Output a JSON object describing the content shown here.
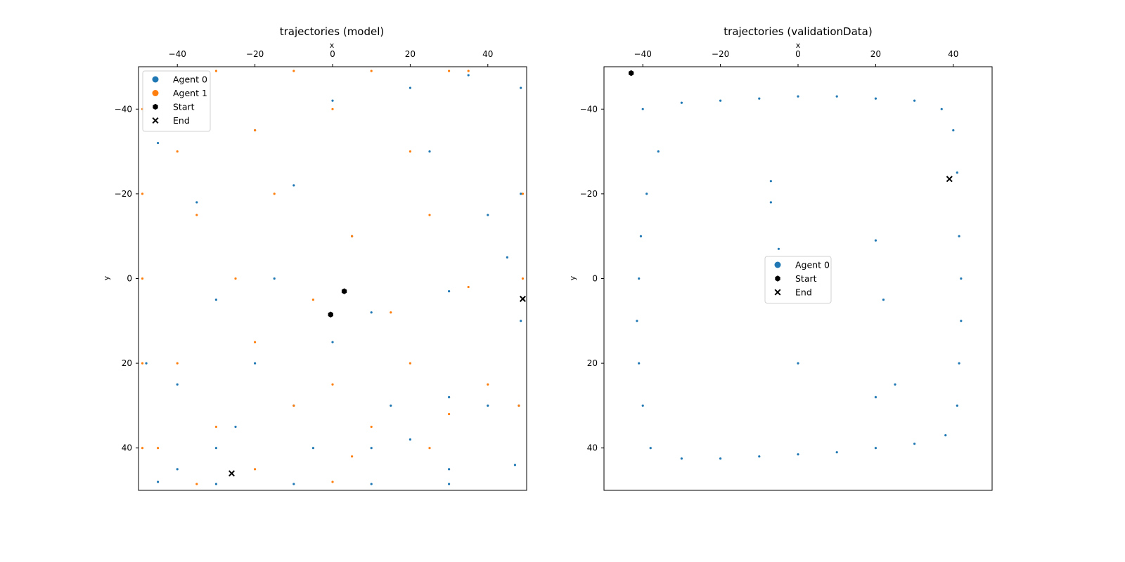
{
  "chart_data": [
    {
      "type": "scatter",
      "title": "trajectories (model)",
      "xlabel": "x",
      "ylabel": "y",
      "xlim": [
        -50,
        50
      ],
      "ylim": [
        50,
        -50
      ],
      "y_inverted": true,
      "x_axis_position": "top",
      "xticks": [
        -40,
        -20,
        0,
        20,
        40
      ],
      "yticks": [
        -40,
        -20,
        0,
        20,
        40
      ],
      "grid": false,
      "legend": {
        "placement": "top-left",
        "entries": [
          {
            "label": "Agent 0",
            "marker": "circle",
            "color": "#1f77b4"
          },
          {
            "label": "Agent 1",
            "marker": "circle",
            "color": "#ff7f0e"
          },
          {
            "label": "Start",
            "marker": "hexagon",
            "color": "#000000"
          },
          {
            "label": "End",
            "marker": "x",
            "color": "#000000"
          }
        ]
      },
      "series": [
        {
          "name": "Agent 0",
          "color": "#1f77b4",
          "x": [
            48.5,
            48.5,
            48.5,
            48.0,
            47.0,
            30.0,
            10.0,
            -10.0,
            -30.0,
            -45.0,
            -48.0,
            -45.0,
            -20.0,
            0.0,
            20.0,
            35.0,
            -35.0,
            -10.0,
            5.0,
            25.0,
            40.0,
            -30.0,
            -15.0,
            10.0,
            30.0,
            45.0,
            -40.0,
            -20.0,
            0.0,
            15.0,
            30.0,
            -25.0,
            -5.0,
            20.0,
            40.0,
            -40.0,
            -30.0,
            -10.0,
            10.0,
            30.0
          ],
          "y": [
            -45.0,
            -20.0,
            10.0,
            30.0,
            44.0,
            48.5,
            48.5,
            48.5,
            48.5,
            48.0,
            20.0,
            -32.0,
            -35.0,
            -42.0,
            -45.0,
            -48.0,
            -18.0,
            -22.0,
            -10.0,
            -30.0,
            -15.0,
            5.0,
            0.0,
            8.0,
            3.0,
            -5.0,
            25.0,
            20.0,
            15.0,
            30.0,
            28.0,
            35.0,
            40.0,
            38.0,
            30.0,
            45.0,
            40.0,
            30.0,
            40.0,
            45.0
          ]
        },
        {
          "name": "Agent 1",
          "color": "#ff7f0e",
          "x": [
            -49.0,
            -49.0,
            -49.0,
            -49.0,
            -49.0,
            -30.0,
            -10.0,
            10.0,
            30.0,
            35.0,
            49.0,
            49.0,
            48.0,
            -40.0,
            -20.0,
            0.0,
            20.0,
            -35.0,
            -15.0,
            5.0,
            25.0,
            -25.0,
            -5.0,
            15.0,
            35.0,
            -40.0,
            -20.0,
            0.0,
            20.0,
            40.0,
            -30.0,
            -10.0,
            10.0,
            30.0,
            -45.0,
            -20.0,
            5.0,
            25.0,
            -35.0,
            0.0
          ],
          "y": [
            -40.0,
            -20.0,
            0.0,
            20.0,
            40.0,
            -49.0,
            -49.0,
            -49.0,
            -49.0,
            -49.0,
            -20.0,
            0.0,
            30.0,
            -30.0,
            -35.0,
            -40.0,
            -30.0,
            -15.0,
            -20.0,
            -10.0,
            -15.0,
            0.0,
            5.0,
            8.0,
            2.0,
            20.0,
            15.0,
            25.0,
            20.0,
            25.0,
            35.0,
            30.0,
            35.0,
            32.0,
            40.0,
            45.0,
            42.0,
            40.0,
            48.5,
            48.0
          ]
        }
      ],
      "markers": {
        "start": [
          {
            "x": 3.0,
            "y": 3.0
          },
          {
            "x": -0.5,
            "y": 8.5
          }
        ],
        "end": [
          {
            "x": 49.0,
            "y": 4.8
          },
          {
            "x": -26.0,
            "y": 46.0
          }
        ]
      }
    },
    {
      "type": "scatter",
      "title": "trajectories (validationData)",
      "xlabel": "x",
      "ylabel": "y",
      "xlim": [
        -50,
        50
      ],
      "ylim": [
        50,
        -50
      ],
      "y_inverted": true,
      "x_axis_position": "top",
      "xticks": [
        -40,
        -20,
        0,
        20,
        40
      ],
      "yticks": [
        -40,
        -20,
        0,
        20,
        40
      ],
      "grid": false,
      "legend": {
        "placement": "center",
        "entries": [
          {
            "label": "Agent 0",
            "marker": "circle",
            "color": "#1f77b4"
          },
          {
            "label": "Start",
            "marker": "hexagon",
            "color": "#000000"
          },
          {
            "label": "End",
            "marker": "x",
            "color": "#000000"
          }
        ]
      },
      "series": [
        {
          "name": "Agent 0",
          "color": "#1f77b4",
          "x": [
            -40.0,
            -30.0,
            -20.0,
            -10.0,
            0.0,
            10.0,
            20.0,
            30.0,
            37.0,
            40.0,
            41.0,
            41.5,
            42.0,
            42.0,
            41.5,
            41.0,
            38.0,
            30.0,
            20.0,
            10.0,
            0.0,
            -10.0,
            -20.0,
            -30.0,
            -38.0,
            -40.0,
            -41.0,
            -41.5,
            -41.0,
            -40.5,
            -39.0,
            -36.0,
            -7.0,
            -7.0,
            -5.0,
            20.0,
            22.0,
            25.0,
            20.0,
            0.0
          ],
          "y": [
            -40.0,
            -41.5,
            -42.0,
            -42.5,
            -43.0,
            -43.0,
            -42.5,
            -42.0,
            -40.0,
            -35.0,
            -25.0,
            -10.0,
            0.0,
            10.0,
            20.0,
            30.0,
            37.0,
            39.0,
            40.0,
            41.0,
            41.5,
            42.0,
            42.5,
            42.5,
            40.0,
            30.0,
            20.0,
            10.0,
            0.0,
            -10.0,
            -20.0,
            -30.0,
            -23.0,
            -18.0,
            -7.0,
            -9.0,
            5.0,
            25.0,
            28.0,
            20.0
          ]
        }
      ],
      "markers": {
        "start": [
          {
            "x": -43.0,
            "y": -48.5
          }
        ],
        "end": [
          {
            "x": 39.0,
            "y": -23.5
          }
        ]
      }
    }
  ]
}
